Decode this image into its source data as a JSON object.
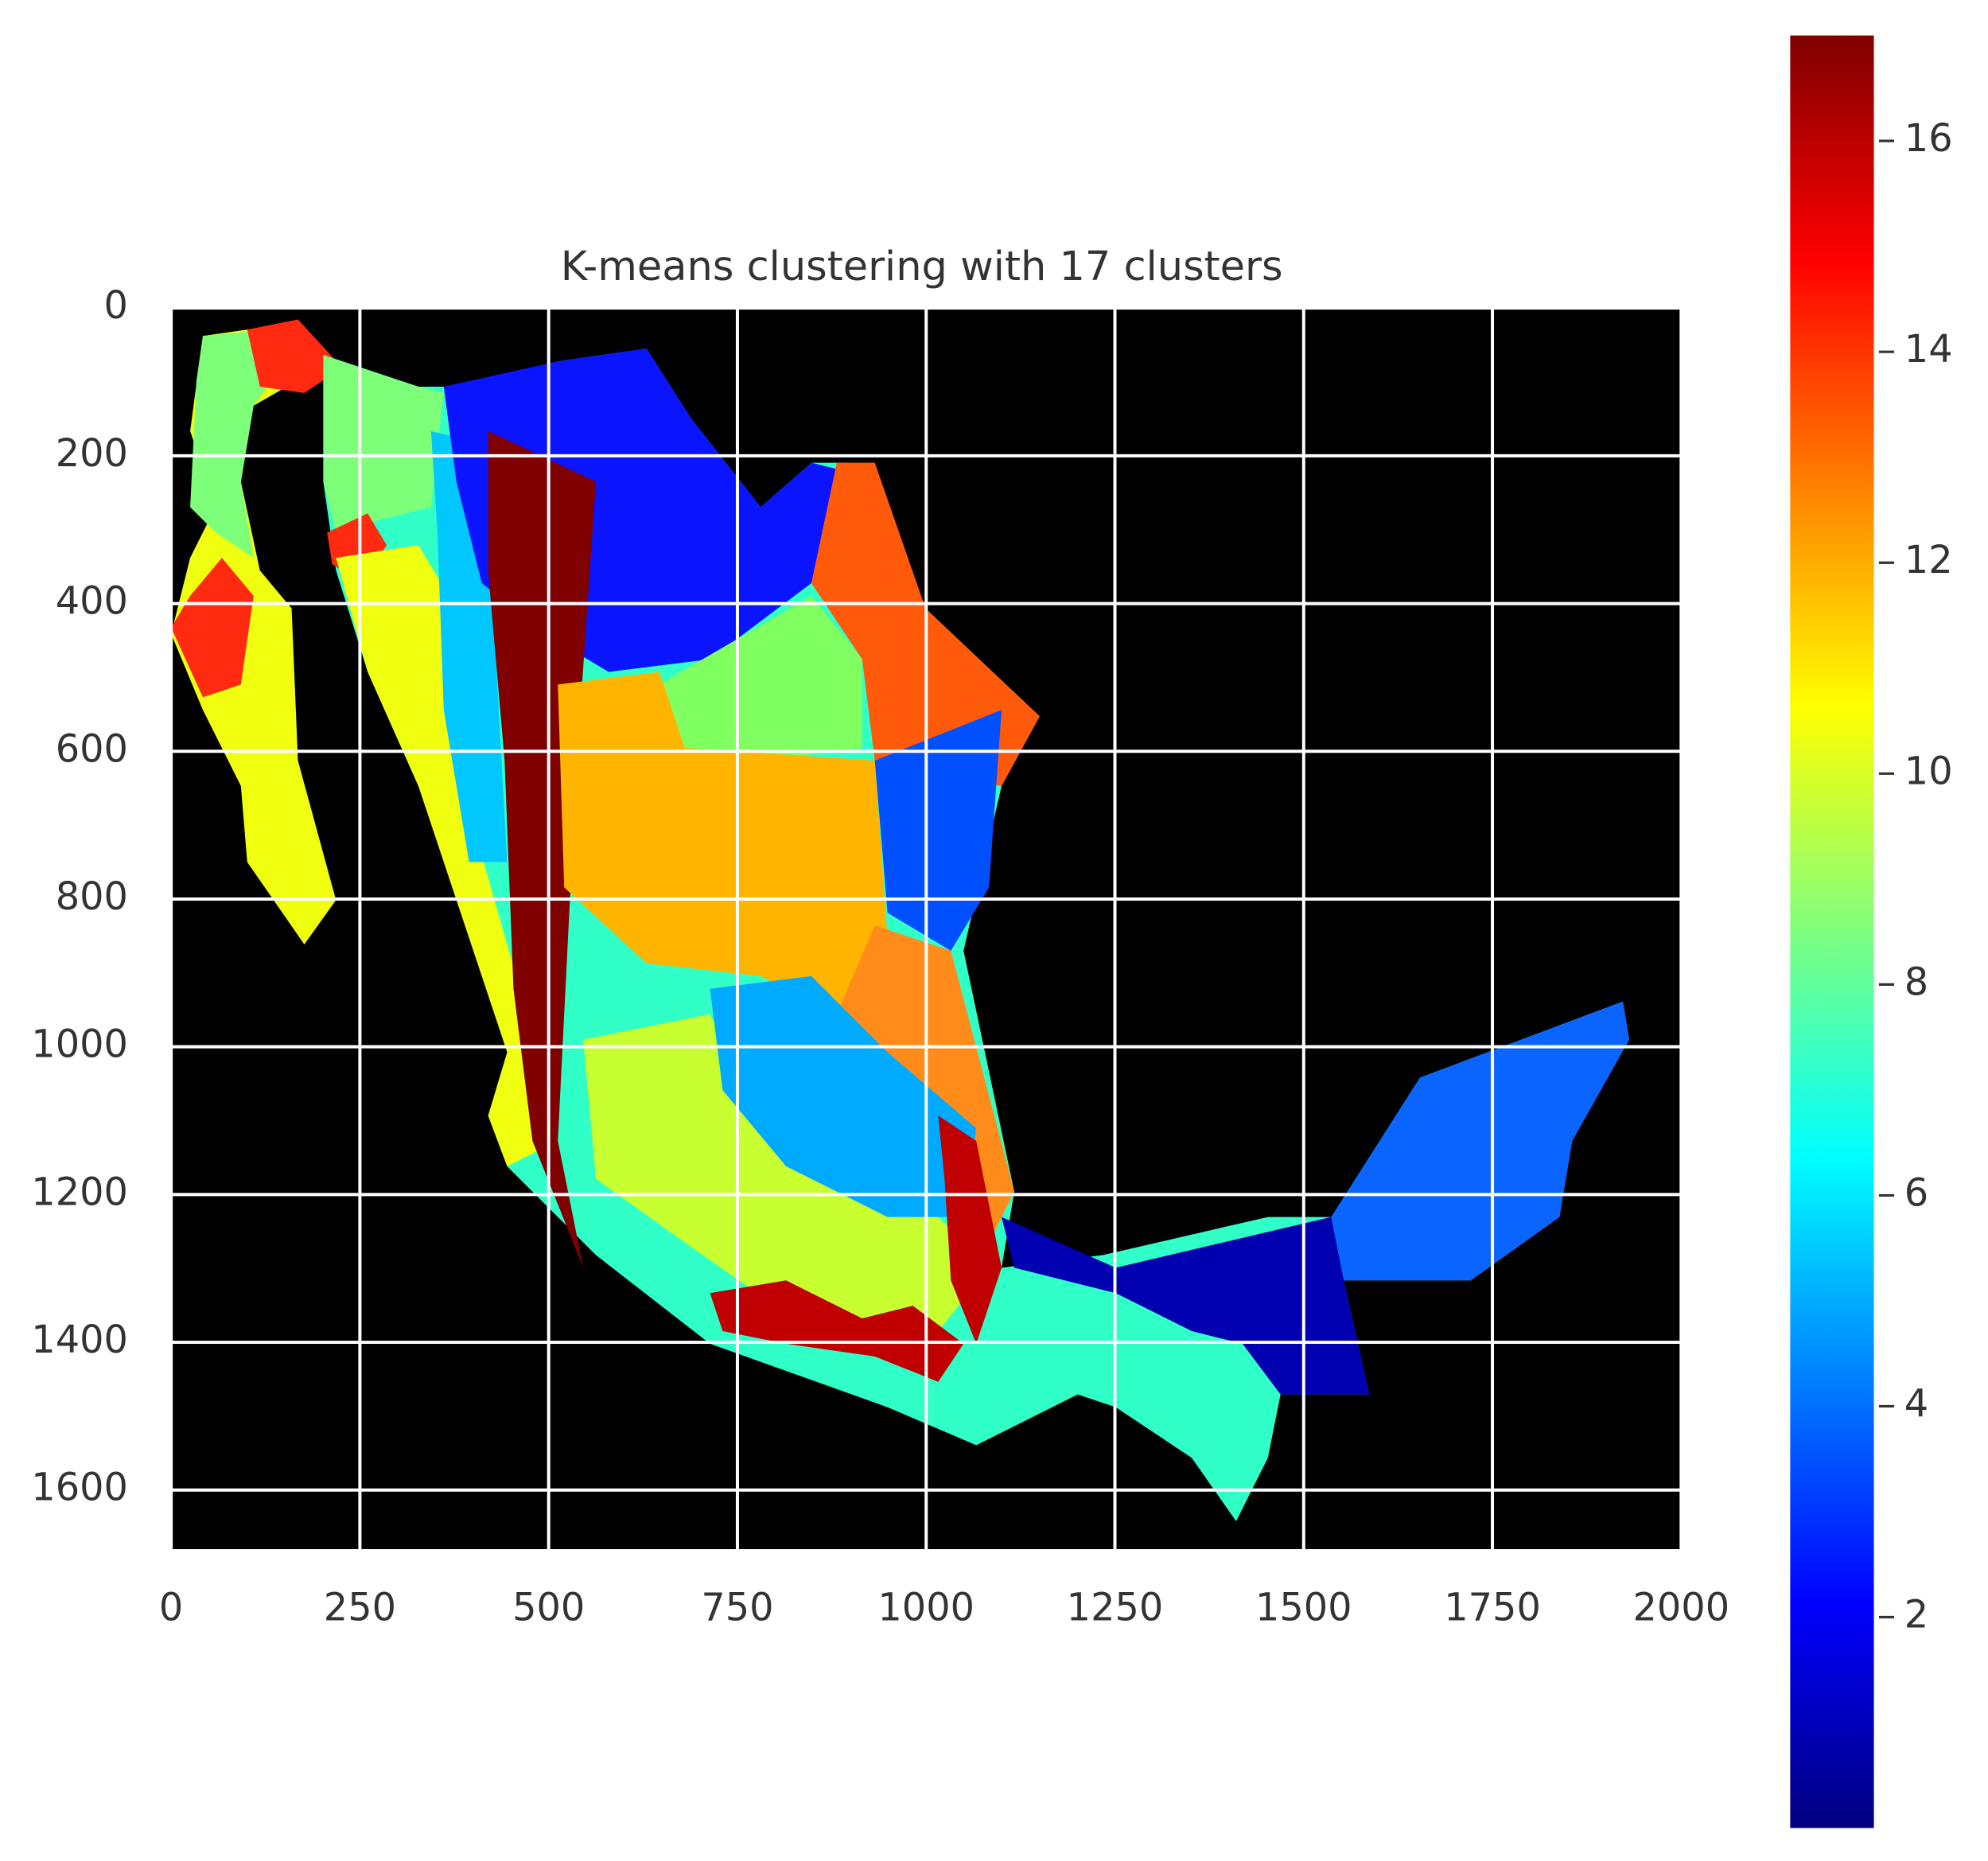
{
  "chart_data": {
    "type": "image",
    "title": "K-means clustering with 17 clusters",
    "xlim": [
      0,
      2000
    ],
    "ylim": [
      1680,
      0
    ],
    "xticks": [
      0,
      250,
      500,
      750,
      1000,
      1250,
      1500,
      1750,
      2000
    ],
    "yticks": [
      0,
      200,
      400,
      600,
      800,
      1000,
      1200,
      1400,
      1600
    ],
    "grid": true,
    "colormap": "jet",
    "clim": [
      0,
      17
    ],
    "cticks": [
      2,
      4,
      6,
      8,
      10,
      12,
      14,
      16
    ]
  }
}
